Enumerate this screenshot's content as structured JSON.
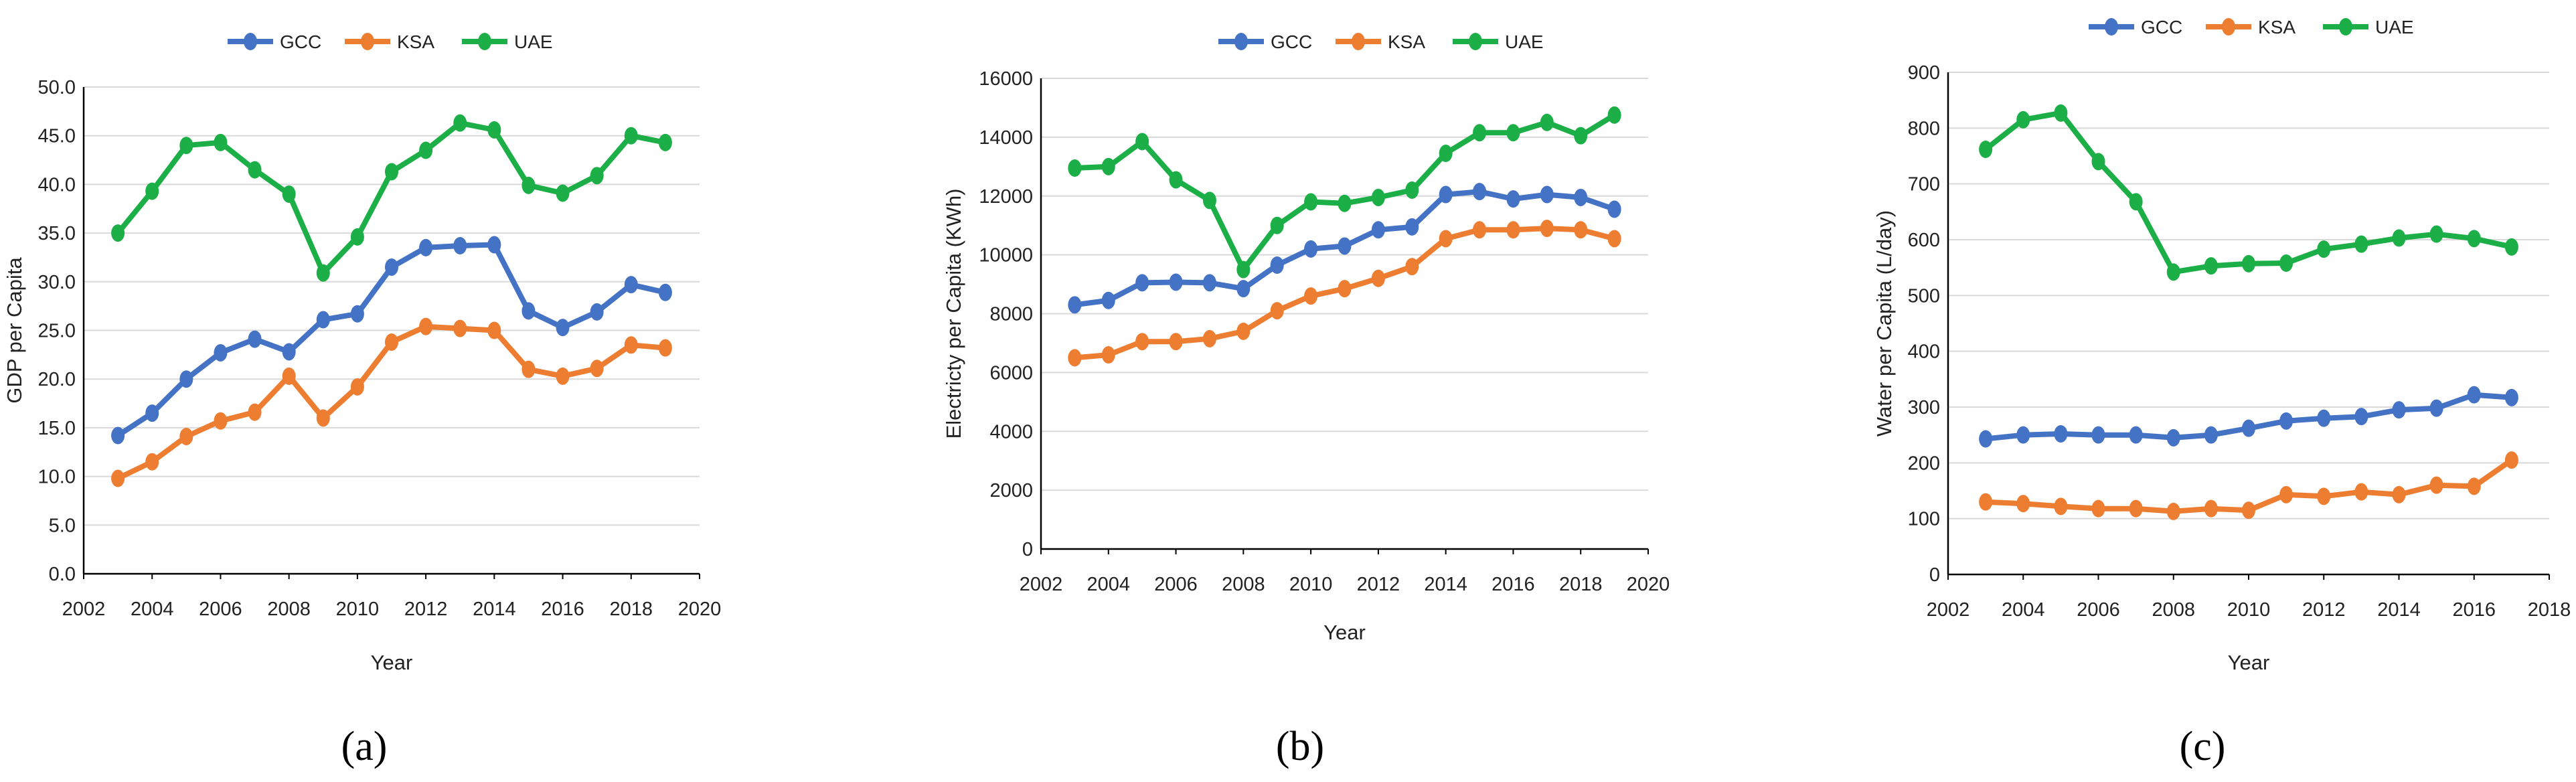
{
  "colors": {
    "GCC": "#4472C4",
    "KSA": "#ED7D31",
    "UAE": "#1DAF47"
  },
  "chart_data": [
    {
      "type": "line",
      "panel_label": "(a)",
      "xlabel": "Year",
      "ylabel": "GDP per Capita",
      "xlim": [
        2002,
        2020
      ],
      "ylim": [
        0,
        50
      ],
      "x_ticks": [
        "2002",
        "2004",
        "2006",
        "2008",
        "2010",
        "2012",
        "2014",
        "2016",
        "2018",
        "2020"
      ],
      "y_ticks": [
        "0.0",
        "5.0",
        "10.0",
        "15.0",
        "20.0",
        "25.0",
        "30.0",
        "35.0",
        "40.0",
        "45.0",
        "50.0"
      ],
      "legend": [
        "GCC",
        "KSA",
        "UAE"
      ],
      "x": [
        2003,
        2004,
        2005,
        2006,
        2007,
        2008,
        2009,
        2010,
        2011,
        2012,
        2013,
        2014,
        2015,
        2016,
        2017,
        2018,
        2019
      ],
      "series": [
        {
          "name": "GCC",
          "values": [
            14.2,
            16.5,
            20.0,
            22.7,
            24.1,
            22.8,
            26.1,
            26.7,
            31.5,
            33.5,
            33.7,
            33.8,
            27.0,
            25.3,
            26.9,
            29.7,
            28.9
          ]
        },
        {
          "name": "KSA",
          "values": [
            9.8,
            11.5,
            14.1,
            15.7,
            16.6,
            20.3,
            16.0,
            19.2,
            23.8,
            25.4,
            25.2,
            25.0,
            21.0,
            20.3,
            21.1,
            23.5,
            23.2
          ]
        },
        {
          "name": "UAE",
          "values": [
            35.0,
            39.3,
            44.0,
            44.3,
            41.5,
            39.0,
            30.9,
            34.6,
            41.3,
            43.5,
            46.3,
            45.6,
            39.9,
            39.1,
            40.9,
            45.0,
            44.3
          ]
        }
      ]
    },
    {
      "type": "line",
      "panel_label": "(b)",
      "xlabel": "Year",
      "ylabel": "Electricty per Capita (KWh)",
      "xlim": [
        2002,
        2020
      ],
      "ylim": [
        0,
        16000
      ],
      "x_ticks": [
        "2002",
        "2004",
        "2006",
        "2008",
        "2010",
        "2012",
        "2014",
        "2016",
        "2018",
        "2020"
      ],
      "y_ticks": [
        "0",
        "2000",
        "4000",
        "6000",
        "8000",
        "10000",
        "12000",
        "14000",
        "16000"
      ],
      "legend": [
        "GCC",
        "KSA",
        "UAE"
      ],
      "x": [
        2003,
        2004,
        2005,
        2006,
        2007,
        2008,
        2009,
        2010,
        2011,
        2012,
        2013,
        2014,
        2015,
        2016,
        2017,
        2018,
        2019
      ],
      "series": [
        {
          "name": "GCC",
          "values": [
            8300,
            8450,
            9050,
            9070,
            9050,
            8850,
            9650,
            10200,
            10300,
            10850,
            10950,
            12050,
            12150,
            11900,
            12050,
            11950,
            11550
          ]
        },
        {
          "name": "KSA",
          "values": [
            6500,
            6600,
            7050,
            7050,
            7150,
            7400,
            8100,
            8600,
            8850,
            9200,
            9600,
            10550,
            10850,
            10850,
            10900,
            10850,
            10550
          ]
        },
        {
          "name": "UAE",
          "values": [
            12950,
            13000,
            13850,
            12550,
            11850,
            9500,
            11000,
            11800,
            11750,
            11950,
            12200,
            13450,
            14150,
            14150,
            14500,
            14050,
            14750
          ]
        }
      ]
    },
    {
      "type": "line",
      "panel_label": "(c)",
      "xlabel": "Year",
      "ylabel": "Water per Capita (L/day)",
      "xlim": [
        2002,
        2018
      ],
      "ylim": [
        0,
        900
      ],
      "x_ticks": [
        "2002",
        "2004",
        "2006",
        "2008",
        "2010",
        "2012",
        "2014",
        "2016",
        "2018"
      ],
      "y_ticks": [
        "0",
        "100",
        "200",
        "300",
        "400",
        "500",
        "600",
        "700",
        "800",
        "900"
      ],
      "legend": [
        "GCC",
        "KSA",
        "UAE"
      ],
      "x": [
        2003,
        2004,
        2005,
        2006,
        2007,
        2008,
        2009,
        2010,
        2011,
        2012,
        2013,
        2014,
        2015,
        2016,
        2017
      ],
      "series": [
        {
          "name": "GCC",
          "values": [
            243,
            250,
            252,
            250,
            250,
            245,
            250,
            262,
            275,
            280,
            283,
            295,
            298,
            322,
            317
          ]
        },
        {
          "name": "KSA",
          "values": [
            130,
            127,
            122,
            118,
            118,
            113,
            118,
            115,
            143,
            140,
            148,
            143,
            160,
            158,
            205
          ]
        },
        {
          "name": "UAE",
          "values": [
            762,
            815,
            827,
            740,
            668,
            542,
            553,
            557,
            558,
            583,
            592,
            603,
            610,
            602,
            587
          ]
        }
      ]
    }
  ]
}
